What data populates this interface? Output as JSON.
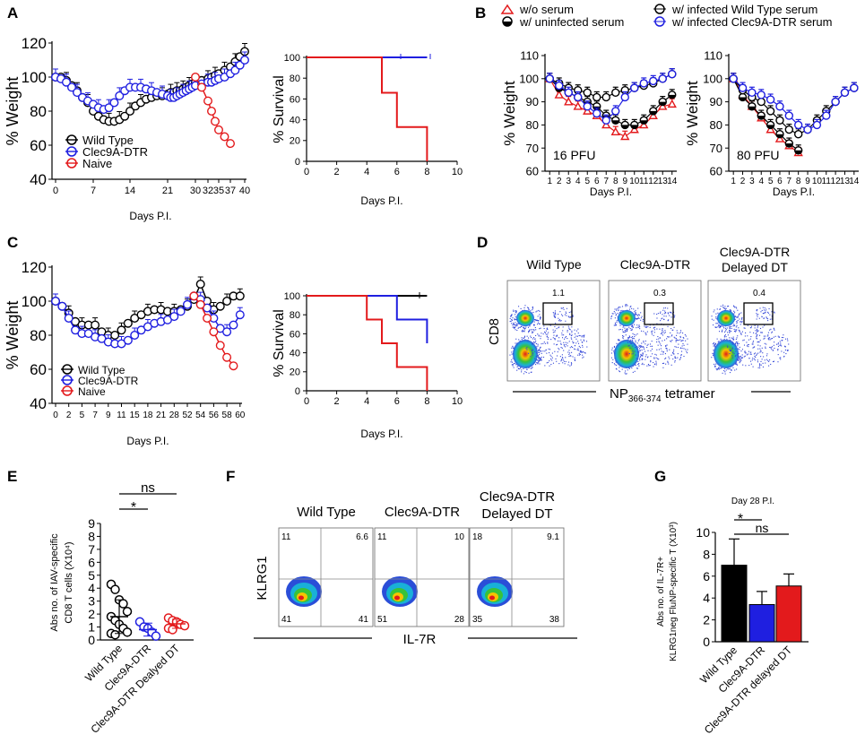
{
  "panel_letters": [
    "A",
    "B",
    "C",
    "D",
    "E",
    "F",
    "G"
  ],
  "colors": {
    "wt": "#000000",
    "clec": "#1f1fe0",
    "naive": "#e31a1c"
  },
  "chart_data": [
    {
      "id": "A1",
      "type": "line",
      "title": "",
      "xlabel": "Days P.I.",
      "ylabel": "% Weight",
      "ylim": [
        40,
        120
      ],
      "yticks": [
        "40",
        "60",
        "80",
        "100",
        "120"
      ],
      "xtick_pos": [
        0,
        7,
        14,
        21,
        30,
        32,
        35,
        37,
        40
      ],
      "xtick_labels": [
        "0",
        "7",
        "14",
        "21",
        "30",
        "32",
        "35",
        "37",
        "40"
      ],
      "legend": [
        "Wild Type",
        "Clec9A-DTR",
        "Naive"
      ],
      "series": [
        {
          "name": "Wild Type",
          "color": "wt",
          "x": [
            0,
            1,
            2,
            3,
            4,
            5,
            6,
            7,
            8,
            9,
            10,
            11,
            12,
            13,
            14,
            15,
            16,
            17,
            18,
            19,
            20,
            21,
            22,
            23,
            24,
            25,
            26,
            27,
            28,
            29,
            30,
            31,
            32,
            33,
            34,
            35,
            36,
            37,
            38,
            39,
            40
          ],
          "y": [
            100,
            100,
            98,
            95,
            92,
            88,
            85,
            80,
            77,
            75,
            74,
            74,
            75,
            77,
            80,
            83,
            85,
            87,
            88,
            89,
            89,
            90,
            91,
            91,
            92,
            92,
            93,
            94,
            95,
            96,
            97,
            98,
            99,
            100,
            101,
            102,
            104,
            106,
            109,
            112,
            115
          ]
        },
        {
          "name": "Clec9A-DTR",
          "color": "clec",
          "x": [
            0,
            1,
            2,
            3,
            4,
            5,
            6,
            7,
            8,
            9,
            10,
            11,
            12,
            13,
            14,
            15,
            16,
            17,
            18,
            19,
            20,
            21,
            22,
            23,
            24,
            25,
            26,
            27,
            28,
            29,
            30,
            31,
            32,
            33,
            34,
            35,
            36,
            37,
            38,
            39,
            40
          ],
          "y": [
            100,
            99,
            97,
            94,
            91,
            88,
            86,
            84,
            82,
            81,
            82,
            85,
            89,
            92,
            94,
            94,
            94,
            93,
            92,
            91,
            90,
            89,
            88,
            88,
            89,
            90,
            91,
            92,
            93,
            94,
            95,
            96,
            97,
            97,
            98,
            99,
            100,
            102,
            104,
            107,
            110
          ]
        },
        {
          "name": "Naive",
          "color": "naive",
          "x": [
            30,
            31,
            32,
            33,
            34,
            35,
            36,
            37
          ],
          "y": [
            100,
            94,
            86,
            80,
            74,
            69,
            65,
            61
          ]
        }
      ]
    },
    {
      "id": "A2",
      "type": "line",
      "title": "",
      "xlabel": "Days P.I.",
      "ylabel": "% Survival",
      "xlim": [
        0,
        10
      ],
      "ylim": [
        0,
        100
      ],
      "xticks": [
        "0",
        "2",
        "4",
        "6",
        "8",
        "10"
      ],
      "yticks": [
        "0",
        "20",
        "40",
        "60",
        "80",
        "100"
      ],
      "series": [
        {
          "name": "Wild Type",
          "color": "wt",
          "x": [
            0,
            8
          ],
          "y": [
            100,
            100
          ]
        },
        {
          "name": "Clec9A-DTR",
          "color": "clec",
          "x": [
            0,
            8
          ],
          "y": [
            100,
            100
          ]
        },
        {
          "name": "Naive",
          "color": "naive",
          "x": [
            0,
            5,
            5,
            6,
            6,
            8,
            8
          ],
          "y": [
            100,
            100,
            66,
            66,
            33,
            33,
            0
          ]
        }
      ]
    },
    {
      "id": "B1",
      "type": "line",
      "title": "",
      "xlabel": "Days P.I.",
      "ylabel": "% Weight",
      "annotation": "16 PFU",
      "ylim": [
        60,
        110
      ],
      "yticks": [
        "60",
        "70",
        "80",
        "90",
        "100",
        "110"
      ],
      "xticks": [
        "1",
        "2",
        "3",
        "4",
        "5",
        "6",
        "7",
        "8",
        "9",
        "10",
        "11",
        "12",
        "13",
        "14"
      ],
      "legend": [
        "w/o serum",
        "w/ uninfected serum",
        "w/ infected Wild Type serum",
        "w/ infected Clec9A-DTR serum"
      ],
      "series": [
        {
          "name": "w/o serum",
          "color": "naive",
          "x": [
            1,
            2,
            3,
            4,
            5,
            6,
            7,
            8,
            9,
            10,
            11,
            12,
            13,
            14
          ],
          "y": [
            100,
            93,
            90,
            88,
            86,
            84,
            80,
            77,
            75,
            78,
            80,
            84,
            88,
            89
          ]
        },
        {
          "name": "w/ uninfected serum",
          "color": "wt",
          "x": [
            1,
            2,
            3,
            4,
            5,
            6,
            7,
            8,
            9,
            10,
            11,
            12,
            13,
            14
          ],
          "y": [
            100,
            96,
            94,
            92,
            90,
            88,
            84,
            82,
            80,
            80,
            82,
            86,
            90,
            93
          ]
        },
        {
          "name": "w/ infected Wild Type serum",
          "color": "wt",
          "x": [
            1,
            2,
            3,
            4,
            5,
            6,
            7,
            8,
            9,
            10,
            11,
            12,
            13,
            14
          ],
          "y": [
            100,
            98,
            96,
            95,
            94,
            92,
            92,
            94,
            95,
            96,
            97,
            98,
            100,
            102
          ]
        },
        {
          "name": "w/ infected Clec9A-DTR serum",
          "color": "clec",
          "x": [
            1,
            2,
            3,
            4,
            5,
            6,
            7,
            8,
            9,
            10,
            11,
            12,
            13,
            14
          ],
          "y": [
            100,
            97,
            94,
            92,
            88,
            85,
            82,
            86,
            92,
            96,
            98,
            99,
            100,
            102
          ]
        }
      ]
    },
    {
      "id": "B2",
      "type": "line",
      "title": "",
      "xlabel": "Days P.I.",
      "ylabel": "% Weight",
      "annotation": "80 PFU",
      "ylim": [
        60,
        110
      ],
      "yticks": [
        "60",
        "70",
        "80",
        "90",
        "100",
        "110"
      ],
      "xticks": [
        "1",
        "2",
        "3",
        "4",
        "5",
        "6",
        "7",
        "8",
        "9",
        "10",
        "11",
        "12",
        "13",
        "14"
      ],
      "series": [
        {
          "name": "w/o serum",
          "color": "naive",
          "x": [
            1,
            2,
            3,
            4,
            5,
            6,
            7,
            8
          ],
          "y": [
            100,
            93,
            88,
            83,
            78,
            74,
            71,
            68
          ]
        },
        {
          "name": "w/ uninfected serum",
          "color": "wt",
          "x": [
            1,
            2,
            3,
            4,
            5,
            6,
            7,
            8
          ],
          "y": [
            100,
            92,
            88,
            84,
            80,
            76,
            72,
            69
          ]
        },
        {
          "name": "w/ infected Wild Type serum",
          "color": "wt",
          "x": [
            1,
            2,
            3,
            4,
            5,
            6,
            7,
            8,
            9,
            10,
            11,
            12,
            13,
            14
          ],
          "y": [
            100,
            95,
            92,
            90,
            86,
            82,
            78,
            76,
            78,
            82,
            86,
            90,
            94,
            96
          ]
        },
        {
          "name": "w/ infected Clec9A-DTR serum",
          "color": "clec",
          "x": [
            1,
            2,
            3,
            4,
            5,
            6,
            7,
            8,
            9,
            10,
            11,
            12,
            13,
            14
          ],
          "y": [
            100,
            96,
            94,
            93,
            91,
            88,
            84,
            80,
            78,
            80,
            84,
            90,
            94,
            96
          ]
        }
      ]
    },
    {
      "id": "C1",
      "type": "line",
      "title": "",
      "xlabel": "Days P.I.",
      "ylabel": "% Weight",
      "ylim": [
        40,
        120
      ],
      "yticks": [
        "40",
        "60",
        "80",
        "100",
        "120"
      ],
      "xticks": [
        "0",
        "2",
        "5",
        "7",
        "9",
        "11",
        "15",
        "18",
        "21",
        "28",
        "52",
        "54",
        "56",
        "58",
        "60"
      ],
      "legend": [
        "Wild Type",
        "Clec9A-DTR",
        "Naive"
      ],
      "series": [
        {
          "name": "Wild Type",
          "color": "wt",
          "x": [
            0,
            1,
            2,
            3,
            4,
            5,
            6,
            7,
            8,
            9,
            10,
            11,
            12,
            13,
            14,
            15,
            16,
            17,
            18,
            19,
            20,
            21,
            22,
            23,
            24,
            25,
            26,
            27,
            28
          ],
          "y": [
            100,
            97,
            93,
            88,
            86,
            86,
            86,
            82,
            80,
            80,
            83,
            87,
            90,
            92,
            94,
            95,
            95,
            94,
            94,
            95,
            97,
            101,
            110,
            100,
            95,
            97,
            100,
            103,
            103
          ]
        },
        {
          "name": "Clec9A-DTR",
          "color": "clec",
          "x": [
            0,
            1,
            2,
            3,
            4,
            5,
            6,
            7,
            8,
            9,
            10,
            11,
            12,
            13,
            14,
            15,
            16,
            17,
            18,
            19,
            20,
            21,
            22,
            23,
            24,
            25,
            26,
            27,
            28
          ],
          "y": [
            100,
            97,
            90,
            83,
            81,
            81,
            79,
            78,
            76,
            75,
            75,
            77,
            80,
            83,
            85,
            87,
            88,
            89,
            91,
            94,
            98,
            103,
            101,
            96,
            90,
            84,
            82,
            86,
            92
          ]
        },
        {
          "name": "Naive",
          "color": "naive",
          "x": [
            21,
            22,
            23,
            24,
            25,
            26,
            27
          ],
          "y": [
            103,
            98,
            90,
            82,
            74,
            67,
            62
          ]
        }
      ]
    },
    {
      "id": "C2",
      "type": "line",
      "title": "",
      "xlabel": "Days P.I.",
      "ylabel": "% Survival",
      "xlim": [
        0,
        10
      ],
      "ylim": [
        0,
        100
      ],
      "xticks": [
        "0",
        "2",
        "4",
        "6",
        "8",
        "10"
      ],
      "yticks": [
        "0",
        "20",
        "40",
        "60",
        "80",
        "100"
      ],
      "series": [
        {
          "name": "Wild Type",
          "color": "wt",
          "x": [
            0,
            8
          ],
          "y": [
            100,
            100
          ]
        },
        {
          "name": "Clec9A-DTR",
          "color": "clec",
          "x": [
            0,
            6,
            6,
            8,
            8
          ],
          "y": [
            100,
            100,
            75,
            75,
            50
          ]
        },
        {
          "name": "Naive",
          "color": "naive",
          "x": [
            0,
            4,
            4,
            5,
            5,
            6,
            6,
            8,
            8
          ],
          "y": [
            100,
            100,
            75,
            75,
            50,
            50,
            25,
            25,
            0
          ]
        }
      ]
    },
    {
      "id": "E",
      "type": "scatter",
      "title": "",
      "ylabel": "Abs no. of IAV-specific CD8 T cells (X10⁴)",
      "ylim": [
        0,
        9
      ],
      "yticks": [
        "0",
        "1",
        "2",
        "3",
        "4",
        "5",
        "6",
        "7",
        "8",
        "9"
      ],
      "categories": [
        "Wild Type",
        "Clec9A-DTR",
        "Clec9A-DTR Dealyed DT"
      ],
      "significance": [
        {
          "pair": [
            0,
            1
          ],
          "label": "*"
        },
        {
          "pair": [
            0,
            2
          ],
          "label": "ns"
        }
      ],
      "points": [
        [
          4.3,
          3.9,
          3.1,
          2.8,
          2.2,
          1.8,
          1.5,
          1.2,
          0.9,
          0.6,
          0.5,
          0.4
        ],
        [
          1.4,
          1.0,
          0.9,
          0.6,
          0.3
        ],
        [
          1.7,
          1.5,
          1.4,
          1.2,
          1.1,
          0.9,
          0.8
        ]
      ],
      "means": [
        1.8,
        0.8,
        1.25
      ],
      "sd": [
        1.3,
        0.5,
        0.35
      ]
    },
    {
      "id": "G",
      "type": "bar",
      "title": "Day 28 P.I.",
      "ylabel": "Abs no. of IL-7R+ KLRG1neg FluNP-specific T (X10³)",
      "ylim": [
        0,
        10
      ],
      "yticks": [
        "0",
        "2",
        "4",
        "6",
        "8",
        "10"
      ],
      "categories": [
        "Wild Type",
        "Clec9A-DTR",
        "Clec9A-DTR delayed DT"
      ],
      "values": [
        7.0,
        3.4,
        5.1
      ],
      "errors": [
        2.4,
        1.2,
        1.1
      ],
      "significance": [
        {
          "pair": [
            0,
            1
          ],
          "label": "*"
        },
        {
          "pair": [
            0,
            2
          ],
          "label": "ns"
        }
      ]
    }
  ],
  "panel_B": {
    "serum_legend": [
      "w/o serum",
      "w/ uninfected serum",
      "w/ infected Wild Type serum",
      "w/ infected Clec9A-DTR serum"
    ]
  },
  "panel_D": {
    "columns": [
      "Wild Type",
      "Clec9A-DTR",
      "Clec9A-DTR\nDelayed DT"
    ],
    "gate_values": [
      "1.1",
      "0.3",
      "0.4"
    ],
    "y_label": "CD8",
    "x_label_main": "NP",
    "x_label_sub": "366-374",
    "x_label_end": " tetramer"
  },
  "panel_F": {
    "columns": [
      "Wild Type",
      "Clec9A-DTR",
      "Clec9A-DTR\nDelayed DT"
    ],
    "quadrants": [
      [
        "11",
        "6.6",
        "41",
        "41"
      ],
      [
        "11",
        "10",
        "51",
        "28"
      ],
      [
        "18",
        "9.1",
        "35",
        "38"
      ]
    ],
    "y_label": "KLRG1",
    "x_label": "IL-7R"
  }
}
